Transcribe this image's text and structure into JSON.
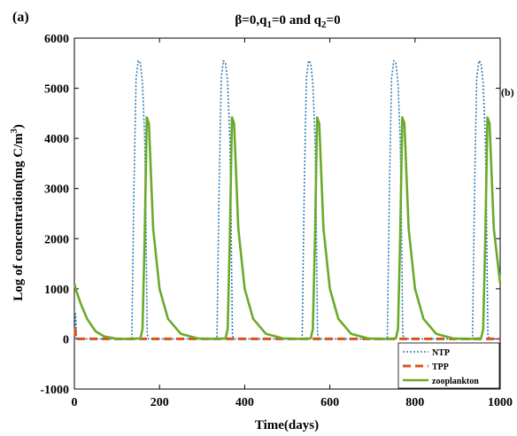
{
  "panel_labels": {
    "left": "(a)",
    "right": "(b)"
  },
  "title": {
    "main": "β=0,q",
    "sub1": "1",
    "mid": "=0 and q",
    "sub2": "2",
    "end": "=0"
  },
  "ylabel": {
    "main": "Log of concentration(mg C/m",
    "sup": "3",
    "end": ")"
  },
  "colors": {
    "NTP": "#2b7bba",
    "TPP": "#d95319",
    "zooplankton": "#6aaa2a"
  },
  "chart_data": {
    "type": "line",
    "xlabel": "Time(days)",
    "xlim": [
      0,
      1000
    ],
    "ylim": [
      -1000,
      6000
    ],
    "xticks": [
      0,
      200,
      400,
      600,
      800,
      1000
    ],
    "yticks": [
      -1000,
      0,
      1000,
      2000,
      3000,
      4000,
      5000,
      6000
    ],
    "legend_position": "bottom-right",
    "series": [
      {
        "name": "NTP",
        "style": "dotted",
        "x": [
          0,
          2,
          3,
          5,
          120,
          135,
          140,
          145,
          150,
          155,
          160,
          165,
          168,
          171,
          174,
          320,
          335,
          340,
          345,
          350,
          355,
          360,
          365,
          368,
          371,
          374,
          520,
          535,
          540,
          545,
          550,
          555,
          560,
          565,
          568,
          571,
          574,
          720,
          735,
          740,
          745,
          750,
          755,
          760,
          765,
          768,
          771,
          774,
          920,
          935,
          940,
          945,
          950,
          955,
          960,
          965,
          968,
          971,
          974,
          1000
        ],
        "y": [
          0,
          0,
          500,
          0,
          0,
          5,
          3000,
          5200,
          5550,
          5500,
          5100,
          4000,
          2500,
          100,
          0,
          0,
          5,
          3000,
          5200,
          5550,
          5500,
          5100,
          4000,
          2500,
          100,
          0,
          0,
          5,
          3000,
          5200,
          5550,
          5500,
          5100,
          4000,
          2500,
          100,
          0,
          0,
          5,
          3000,
          5200,
          5550,
          5500,
          5100,
          4000,
          2500,
          100,
          0,
          0,
          5,
          3000,
          5200,
          5550,
          5500,
          5100,
          4000,
          2500,
          100,
          0,
          0
        ]
      },
      {
        "name": "TPP",
        "style": "dashed",
        "x": [
          0,
          2,
          3,
          1000
        ],
        "y": [
          200,
          200,
          0,
          0
        ]
      },
      {
        "name": "zooplankton",
        "style": "solid",
        "x": [
          0,
          5,
          15,
          30,
          50,
          70,
          100,
          130,
          155,
          160,
          165,
          170,
          175,
          185,
          200,
          220,
          250,
          290,
          330,
          355,
          360,
          365,
          370,
          375,
          385,
          400,
          420,
          450,
          490,
          530,
          555,
          560,
          565,
          570,
          575,
          585,
          600,
          620,
          650,
          690,
          730,
          755,
          760,
          765,
          770,
          775,
          785,
          800,
          820,
          850,
          890,
          930,
          955,
          960,
          965,
          970,
          975,
          985,
          1000
        ],
        "y": [
          1100,
          950,
          700,
          400,
          150,
          50,
          0,
          0,
          10,
          200,
          2000,
          4420,
          4300,
          2200,
          1000,
          400,
          100,
          10,
          0,
          10,
          200,
          2000,
          4420,
          4300,
          2200,
          1000,
          400,
          100,
          10,
          0,
          10,
          200,
          2000,
          4420,
          4300,
          2200,
          1000,
          400,
          100,
          10,
          0,
          10,
          200,
          2000,
          4420,
          4300,
          2200,
          1000,
          400,
          100,
          10,
          0,
          10,
          200,
          2000,
          4420,
          4300,
          2200,
          1100
        ]
      }
    ]
  }
}
